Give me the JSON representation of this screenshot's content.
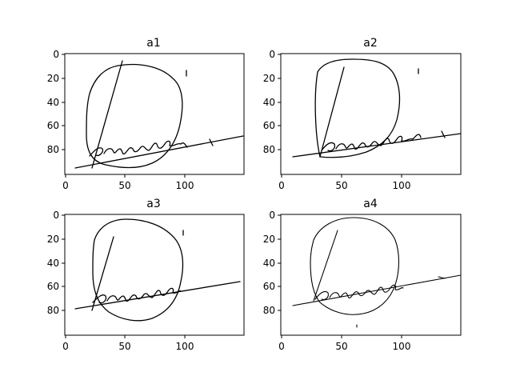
{
  "chart_data": [
    {
      "type": "image",
      "title": "a1",
      "xticks": [
        "0",
        "50",
        "100"
      ],
      "yticks": [
        "0",
        "20",
        "40",
        "60",
        "80"
      ],
      "xlim": [
        0,
        150
      ],
      "ylim": [
        100,
        0
      ],
      "grid": false
    },
    {
      "type": "image",
      "title": "a2",
      "xticks": [
        "0",
        "50",
        "100"
      ],
      "yticks": [
        "0",
        "20",
        "40",
        "60",
        "80"
      ],
      "xlim": [
        0,
        150
      ],
      "ylim": [
        100,
        0
      ],
      "grid": false
    },
    {
      "type": "image",
      "title": "a3",
      "xticks": [
        "0",
        "50",
        "100"
      ],
      "yticks": [
        "0",
        "20",
        "40",
        "60",
        "80"
      ],
      "xlim": [
        0,
        150
      ],
      "ylim": [
        100,
        0
      ],
      "grid": false
    },
    {
      "type": "image",
      "title": "a4",
      "xticks": [
        "0",
        "50",
        "100"
      ],
      "yticks": [
        "0",
        "20",
        "40",
        "60",
        "80"
      ],
      "xlim": [
        0,
        150
      ],
      "ylim": [
        100,
        0
      ],
      "grid": false
    }
  ],
  "colors": {
    "ink": "#000000",
    "background": "#ffffff"
  }
}
